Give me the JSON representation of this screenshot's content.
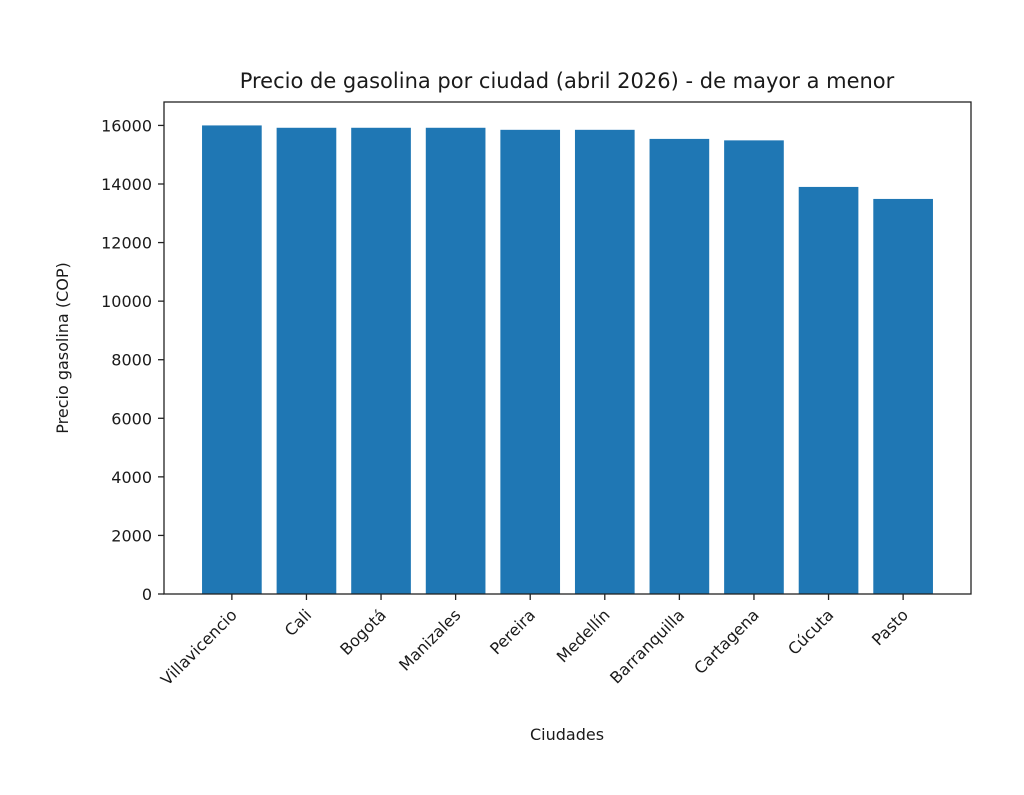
{
  "chart_data": {
    "type": "bar",
    "title": "Precio de gasolina por ciudad (abril 2026) - de mayor a menor",
    "xlabel": "Ciudades",
    "ylabel": "Precio gasolina (COP)",
    "categories": [
      "Villavicencio",
      "Cali",
      "Bogotá",
      "Manizales",
      "Pereira",
      "Medellín",
      "Barranquilla",
      "Cartagena",
      "Cúcuta",
      "Pasto"
    ],
    "values": [
      16000,
      15920,
      15920,
      15920,
      15850,
      15850,
      15540,
      15490,
      13900,
      13490
    ],
    "ylim": [
      0,
      16800
    ],
    "yticks": [
      0,
      2000,
      4000,
      6000,
      8000,
      10000,
      12000,
      14000,
      16000
    ],
    "ytick_labels": [
      "0",
      "2000",
      "4000",
      "6000",
      "8000",
      "10000",
      "12000",
      "14000",
      "16000"
    ],
    "bar_color": "#1f77b4",
    "grid": false,
    "xtick_rotation": 45
  }
}
